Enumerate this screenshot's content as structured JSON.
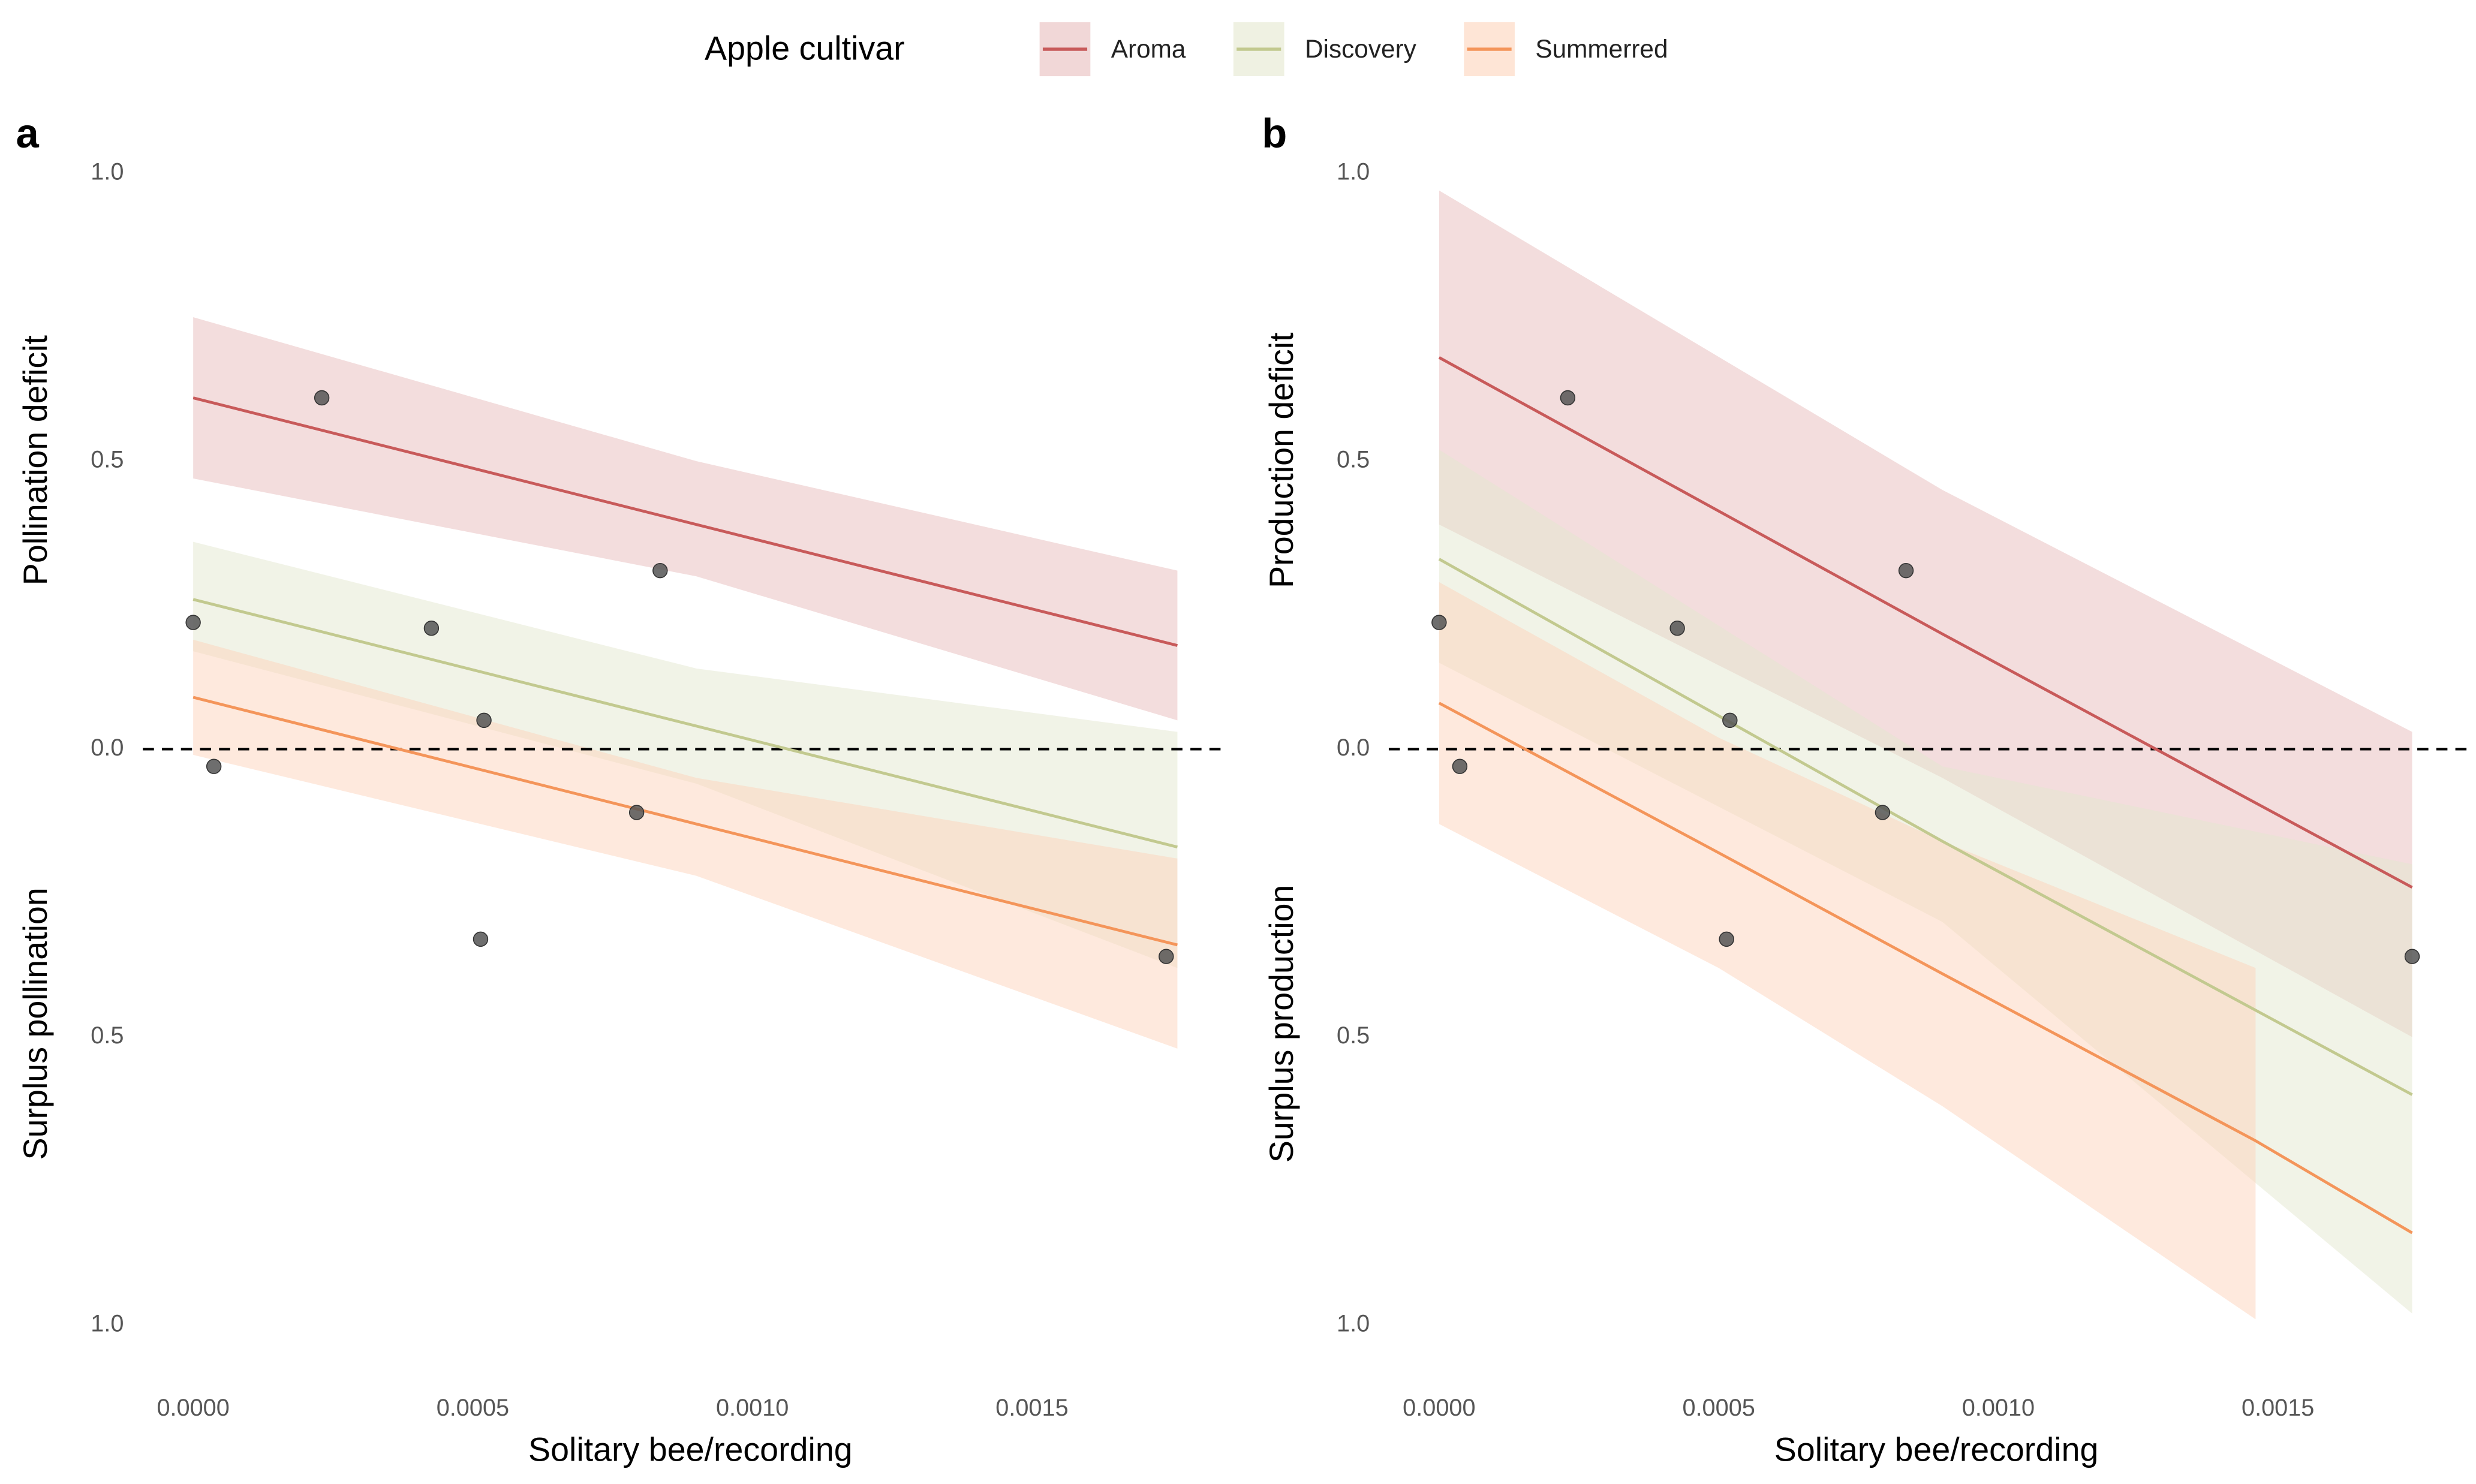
{
  "chart_data": [
    {
      "type": "line",
      "panel_label": "a",
      "legend_title": "Apple cultivar",
      "y_label_top": "Pollination deficit",
      "y_label_bottom": "Surplus pollination",
      "x_label": "Solitary bee/recording",
      "xlim": [
        -9e-05,
        0.00184
      ],
      "ylim": [
        -1.05,
        1.05
      ],
      "hline": 0,
      "xticks": [
        {
          "value": 0,
          "label": "0.0000"
        },
        0.0005,
        {
          "value": 0.001,
          "label": "0.0010"
        },
        0.0015
      ],
      "yticks": [
        {
          "value": 1,
          "label": "1.0"
        },
        0.5,
        {
          "value": 0,
          "label": "0.0"
        },
        {
          "value": -0.5,
          "label": "0.5"
        },
        {
          "value": -1,
          "label": "1.0"
        }
      ],
      "series": [
        {
          "name": "Aroma",
          "color": "#c85a5a",
          "band_color": "#e8bcbc",
          "x": [
            0,
            0.0009,
            0.00176
          ],
          "values": [
            0.61,
            0.39,
            0.18
          ],
          "upper": [
            0.75,
            0.5,
            0.31
          ],
          "lower": [
            0.47,
            0.3,
            0.05
          ]
        },
        {
          "name": "Discovery",
          "color": "#c2c98f",
          "band_color": "#e4e8cf",
          "x": [
            0,
            0.0009,
            0.00176
          ],
          "values": [
            0.26,
            0.04,
            -0.17
          ],
          "upper": [
            0.36,
            0.14,
            0.03
          ],
          "lower": [
            0.17,
            -0.06,
            -0.38
          ]
        },
        {
          "name": "Summerred",
          "color": "#f4955a",
          "band_color": "#fdd3bb",
          "x": [
            0,
            0.0009,
            0.00176
          ],
          "values": [
            0.09,
            -0.13,
            -0.34
          ],
          "upper": [
            0.19,
            -0.05,
            -0.19
          ],
          "lower": [
            -0.01,
            -0.22,
            -0.52
          ]
        }
      ],
      "points": {
        "color": "#555555",
        "x": [
          0,
          3.7e-05,
          0.00023,
          0.000426,
          0.00052,
          0.000514,
          0.000793,
          0.000835,
          0.00174
        ],
        "values": [
          0.22,
          -0.03,
          0.61,
          0.21,
          0.05,
          -0.33,
          -0.11,
          0.31,
          -0.36
        ]
      }
    },
    {
      "type": "line",
      "panel_label": "b",
      "y_label_top": "Production deficit",
      "y_label_bottom": "Surplus production",
      "x_label": "Solitary bee/recording",
      "xlim": [
        -9e-05,
        0.00184
      ],
      "ylim": [
        -1.05,
        1.05
      ],
      "hline": 0,
      "xticks": [
        {
          "value": 0,
          "label": "0.0000"
        },
        0.0005,
        {
          "value": 0.001,
          "label": "0.0010"
        },
        0.0015
      ],
      "yticks": [
        {
          "value": 1,
          "label": "1.0"
        },
        0.5,
        {
          "value": 0,
          "label": "0.0"
        },
        {
          "value": -0.5,
          "label": "0.5"
        },
        {
          "value": -1,
          "label": "1.0"
        }
      ],
      "series": [
        {
          "color": "#c85a5a",
          "band_color": "#e8bcbc",
          "x": [
            0,
            0.0009,
            0.00174
          ],
          "values": [
            0.68,
            0.2,
            -0.24
          ],
          "upper": [
            0.97,
            0.45,
            0.03
          ],
          "lower": [
            0.39,
            -0.05,
            -0.5
          ]
        },
        {
          "color": "#c2c98f",
          "band_color": "#e4e8cf",
          "x": [
            0,
            0.0009,
            0.00174
          ],
          "values": [
            0.33,
            -0.16,
            -0.6
          ],
          "upper": [
            0.52,
            -0.03,
            -0.2
          ],
          "lower": [
            0.15,
            -0.3,
            -0.98
          ]
        },
        {
          "color": "#f4955a",
          "band_color": "#fdd3bb",
          "x": [
            0,
            0.0005,
            0.0009,
            0.00146,
            0.00174
          ],
          "values": [
            0.08,
            -0.18,
            -0.39,
            -0.68,
            -0.84
          ],
          "upper": [
            0.29,
            0.02,
            -0.16,
            -0.38,
            null
          ],
          "lower": [
            -0.13,
            -0.38,
            -0.62,
            -0.99,
            null
          ]
        }
      ],
      "points": {
        "color": "#555555",
        "x": [
          0,
          3.7e-05,
          0.00023,
          0.000426,
          0.00052,
          0.000514,
          0.000793,
          0.000835,
          0.00174
        ],
        "values": [
          0.22,
          -0.03,
          0.61,
          0.21,
          0.05,
          -0.33,
          -0.11,
          0.31,
          -0.36
        ]
      }
    }
  ]
}
